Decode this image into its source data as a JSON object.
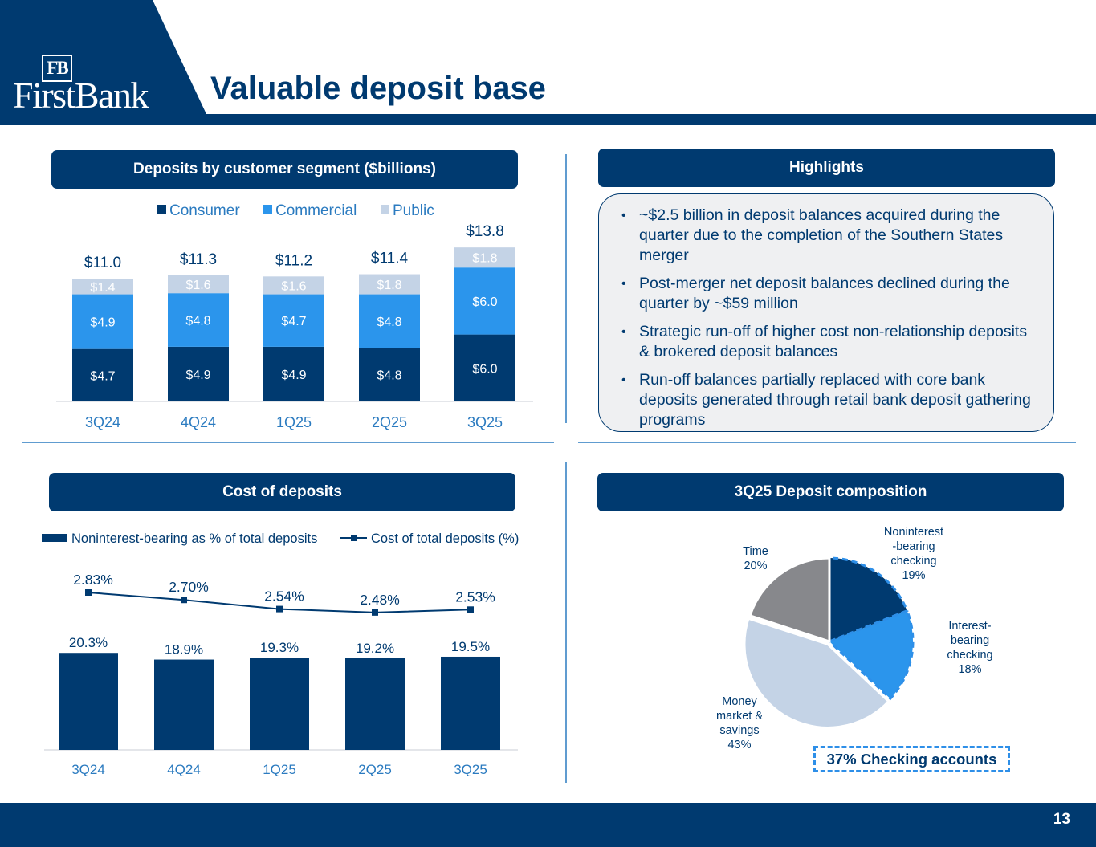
{
  "header": {
    "logo_mark": "FB",
    "logo_text": "FirstBank",
    "title": "Valuable deposit base"
  },
  "sections": {
    "deposits_header": "Deposits by customer segment ($billions)",
    "highlights_header": "Highlights",
    "cost_header": "Cost of deposits",
    "composition_header": "3Q25 Deposit composition"
  },
  "highlights": [
    "~$2.5 billion in deposit balances acquired during the quarter due to the completion of the Southern States merger",
    "Post-merger net deposit balances declined during the quarter by ~$59 million",
    "Strategic run-off of higher cost non-relationship deposits & brokered deposit balances",
    "Run-off balances partially replaced with core bank deposits generated through retail bank deposit gathering programs"
  ],
  "checking_callout": "37% Checking accounts",
  "page_number": "13",
  "colors": {
    "navy": "#003A70",
    "commercial_blue": "#2B95EC",
    "public_light": "#C4D3E6",
    "time_gray": "#87888C",
    "axis_blue": "#2B7BC0"
  },
  "chart_data": [
    {
      "id": "deposits",
      "type": "bar",
      "stacked": true,
      "title": "Deposits by customer segment ($billions)",
      "categories": [
        "3Q24",
        "4Q24",
        "1Q25",
        "2Q25",
        "3Q25"
      ],
      "series": [
        {
          "name": "Consumer",
          "values": [
            4.7,
            4.9,
            4.9,
            4.8,
            6.0
          ],
          "labels": [
            "$4.7",
            "$4.9",
            "$4.9",
            "$4.8",
            "$6.0"
          ]
        },
        {
          "name": "Commercial",
          "values": [
            4.9,
            4.8,
            4.7,
            4.8,
            6.0
          ],
          "labels": [
            "$4.9",
            "$4.8",
            "$4.7",
            "$4.8",
            "$6.0"
          ]
        },
        {
          "name": "Public",
          "values": [
            1.4,
            1.6,
            1.6,
            1.8,
            1.8
          ],
          "labels": [
            "$1.4",
            "$1.6",
            "$1.6",
            "$1.8",
            "$1.8"
          ]
        }
      ],
      "totals": [
        "$11.0",
        "$11.3",
        "$11.2",
        "$11.4",
        "$13.8"
      ],
      "legend_position": "top-center",
      "ylim": [
        0,
        14.5
      ]
    },
    {
      "id": "cost",
      "type": "bar+line",
      "title": "Cost of deposits",
      "categories": [
        "3Q24",
        "4Q24",
        "1Q25",
        "2Q25",
        "3Q25"
      ],
      "bar_series": {
        "name": "Noninterest-bearing as % of total deposits",
        "values": [
          20.3,
          18.9,
          19.3,
          19.2,
          19.5
        ],
        "labels": [
          "20.3%",
          "18.9%",
          "19.3%",
          "19.2%",
          "19.5%"
        ]
      },
      "line_series": {
        "name": "Cost of total deposits (%)",
        "values": [
          2.83,
          2.7,
          2.54,
          2.48,
          2.53
        ],
        "labels": [
          "2.83%",
          "2.70%",
          "2.54%",
          "2.48%",
          "2.53%"
        ]
      },
      "legend_position": "top"
    },
    {
      "id": "composition",
      "type": "pie",
      "title": "3Q25 Deposit composition",
      "slices": [
        {
          "name": "Noninterest-bearing checking",
          "value": 19,
          "label_lines": [
            "Noninterest",
            "-bearing",
            "checking",
            "19%"
          ]
        },
        {
          "name": "Interest-bearing checking",
          "value": 18,
          "label_lines": [
            "Interest-",
            "bearing",
            "checking",
            "18%"
          ]
        },
        {
          "name": "Money market & savings",
          "value": 43,
          "label_lines": [
            "Money",
            "market &",
            "savings",
            "43%"
          ]
        },
        {
          "name": "Time",
          "value": 20,
          "label_lines": [
            "Time",
            "20%"
          ]
        }
      ]
    }
  ]
}
